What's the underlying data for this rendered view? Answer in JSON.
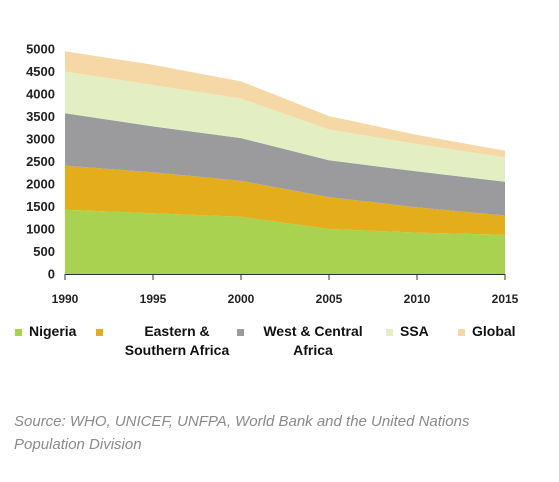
{
  "chart_data": {
    "type": "area",
    "stacked": true,
    "x": [
      1990,
      1995,
      2000,
      2005,
      2010,
      2015
    ],
    "ylim": [
      0,
      5000
    ],
    "yticks": [
      0,
      500,
      1000,
      1500,
      2000,
      2500,
      3000,
      3500,
      4000,
      4500,
      5000
    ],
    "grid": false,
    "legend_position": "bottom",
    "series": [
      {
        "name": "Nigeria",
        "color": "#a8d24f",
        "values": [
          1430,
          1350,
          1270,
          1000,
          920,
          870
        ]
      },
      {
        "name": "Eastern & Southern Africa",
        "color": "#e3ad1c",
        "values": [
          980,
          910,
          800,
          710,
          560,
          430
        ]
      },
      {
        "name": "West & Central Africa",
        "color": "#9b9b9e",
        "values": [
          1160,
          1020,
          950,
          820,
          800,
          750
        ]
      },
      {
        "name": "SSA",
        "color": "#e3efc3",
        "values": [
          930,
          920,
          880,
          680,
          610,
          540
        ]
      },
      {
        "name": "Global",
        "color": "#f5d8a6",
        "values": [
          450,
          450,
          380,
          300,
          200,
          150
        ]
      }
    ]
  },
  "legend_labels": {
    "nigeria": "Nigeria",
    "esa": "Eastern &\nSouthern Africa",
    "wca": "West & Central\nAfrica",
    "ssa": "SSA",
    "global": "Global"
  },
  "source": "Source: WHO, UNICEF, UNFPA, World Bank and the United Nations Population Division"
}
